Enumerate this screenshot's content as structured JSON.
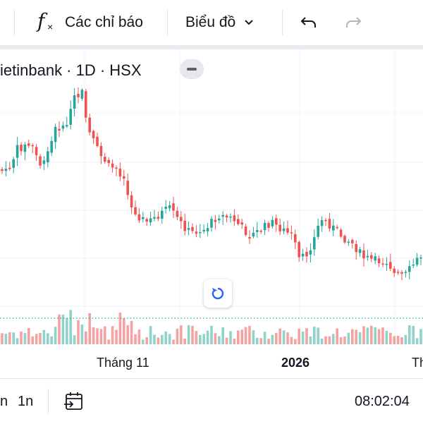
{
  "toolbar": {
    "indicators_label": "Các chỉ báo",
    "chart_type_label": "Biểu đồ",
    "icons": [
      "fx-icon",
      "chevron-down-icon",
      "undo-icon",
      "redo-icon"
    ]
  },
  "legend": {
    "symbol_text": "ietinbank · 1D · HSX"
  },
  "time_axis": {
    "labels": [
      "Tháng 11",
      "2026",
      "Th"
    ]
  },
  "bottom_bar": {
    "range_partial": "n",
    "range_1n": "1n",
    "clock": "08:02:04",
    "icons": [
      "calendar-goto-icon"
    ]
  },
  "colors": {
    "up": "#26a69a",
    "down": "#ef5350",
    "grid": "#f0f3fa",
    "text": "#131722",
    "accent": "#2962ff"
  },
  "chart_data": {
    "type": "candlestick",
    "price_trend": "Peaked near start of November, declined through November, consolidated sideways into 2026, slight recovery at right edge"
  }
}
